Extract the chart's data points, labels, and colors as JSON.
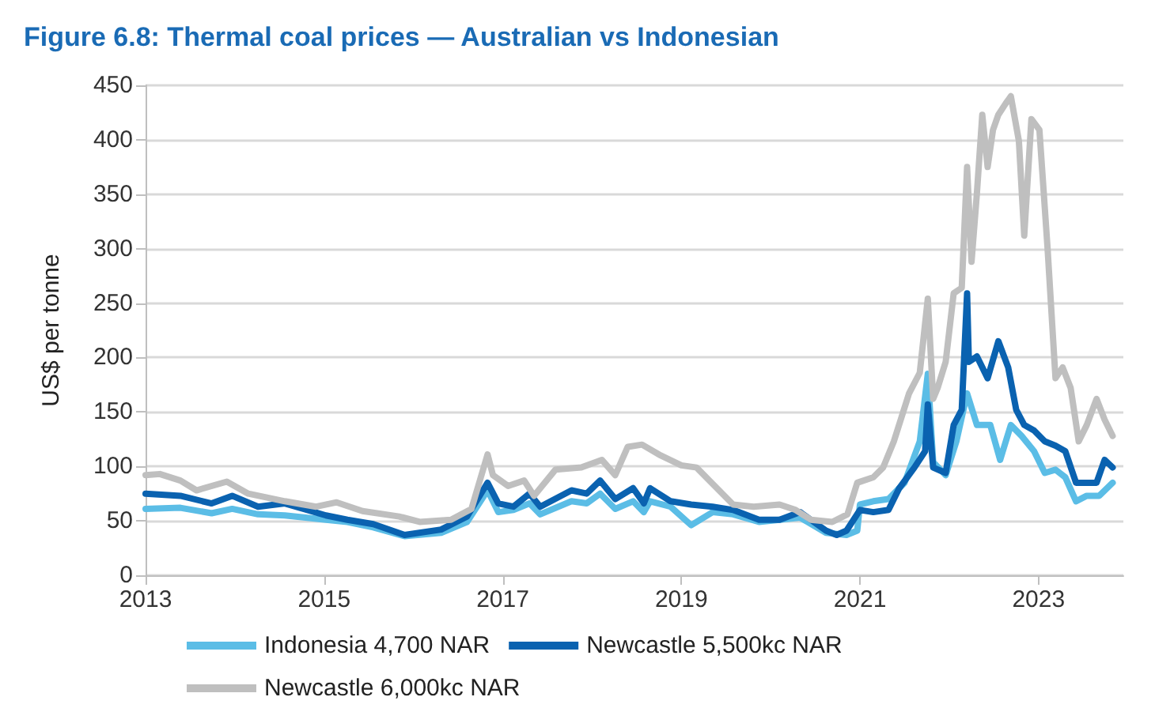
{
  "chart_data": {
    "type": "line",
    "title": "Figure 6.8: Thermal coal prices — Australian vs Indonesian",
    "ylabel": "US$ per tonne",
    "xlim": [
      2013,
      2023.95
    ],
    "xticks": [
      2013,
      2015,
      2017,
      2019,
      2021,
      2023
    ],
    "ylim": [
      0,
      450
    ],
    "yticks": [
      0,
      50,
      100,
      150,
      200,
      250,
      300,
      350,
      400,
      450
    ],
    "grid": "y",
    "legend": "bottom",
    "marker": "none",
    "line_style": "solid",
    "series": [
      {
        "name": "Indonesia 4,700 NAR",
        "color": "#5bbde6",
        "x": [
          2013.0,
          2013.39,
          2013.74,
          2013.97,
          2014.26,
          2014.56,
          2015.02,
          2015.26,
          2015.55,
          2015.9,
          2016.31,
          2016.6,
          2016.83,
          2016.95,
          2017.12,
          2017.3,
          2017.42,
          2017.77,
          2017.94,
          2018.09,
          2018.26,
          2018.46,
          2018.58,
          2018.65,
          2018.88,
          2019.11,
          2019.35,
          2019.58,
          2019.87,
          2020.1,
          2020.33,
          2020.62,
          2020.85,
          2020.97,
          2021.0,
          2021.15,
          2021.32,
          2021.5,
          2021.67,
          2021.76,
          2021.82,
          2021.96,
          2022.08,
          2022.2,
          2022.31,
          2022.46,
          2022.57,
          2022.69,
          2022.81,
          2022.95,
          2023.07,
          2023.19,
          2023.3,
          2023.42,
          2023.54,
          2023.68,
          2023.83
        ],
        "values": [
          61,
          62,
          57,
          61,
          56,
          55,
          51,
          49,
          44,
          36,
          39,
          49,
          78,
          58,
          60,
          66,
          56,
          68,
          66,
          75,
          61,
          68,
          58,
          68,
          63,
          46,
          58,
          56,
          49,
          51,
          53,
          39,
          37,
          41,
          65,
          68,
          70,
          85,
          123,
          185,
          104,
          92,
          123,
          167,
          138,
          138,
          106,
          138,
          128,
          114,
          94,
          97,
          90,
          68,
          73,
          73,
          85
        ]
      },
      {
        "name": "Newcastle 5,500kc NAR",
        "color": "#0a62b0",
        "x": [
          2013.0,
          2013.39,
          2013.74,
          2013.97,
          2014.26,
          2014.56,
          2015.02,
          2015.26,
          2015.55,
          2015.9,
          2016.31,
          2016.6,
          2016.83,
          2016.95,
          2017.12,
          2017.3,
          2017.42,
          2017.77,
          2017.94,
          2018.09,
          2018.26,
          2018.46,
          2018.58,
          2018.65,
          2018.88,
          2019.11,
          2019.35,
          2019.58,
          2019.87,
          2020.1,
          2020.33,
          2020.62,
          2020.74,
          2020.85,
          2021.0,
          2021.15,
          2021.32,
          2021.44,
          2021.61,
          2021.73,
          2021.76,
          2021.82,
          2021.96,
          2022.05,
          2022.14,
          2022.2,
          2022.22,
          2022.31,
          2022.43,
          2022.55,
          2022.66,
          2022.75,
          2022.84,
          2022.95,
          2023.07,
          2023.19,
          2023.3,
          2023.42,
          2023.54,
          2023.65,
          2023.74,
          2023.83
        ],
        "values": [
          75,
          73,
          66,
          73,
          63,
          66,
          55,
          51,
          47,
          37,
          42,
          54,
          85,
          66,
          63,
          75,
          63,
          78,
          75,
          87,
          70,
          80,
          66,
          80,
          68,
          65,
          63,
          60,
          51,
          51,
          58,
          41,
          37,
          41,
          60,
          58,
          60,
          80,
          99,
          114,
          157,
          99,
          94,
          138,
          152,
          259,
          196,
          201,
          181,
          215,
          191,
          152,
          138,
          133,
          123,
          119,
          114,
          85,
          85,
          85,
          106,
          99
        ]
      },
      {
        "name": "Newcastle 6,000kc NAR",
        "color": "#bfbfbf",
        "x": [
          2013.0,
          2013.16,
          2013.39,
          2013.57,
          2013.91,
          2014.15,
          2014.56,
          2014.91,
          2015.14,
          2015.43,
          2015.84,
          2016.07,
          2016.42,
          2016.65,
          2016.83,
          2016.89,
          2017.06,
          2017.24,
          2017.35,
          2017.59,
          2017.88,
          2018.11,
          2018.26,
          2018.4,
          2018.56,
          2018.77,
          2019.0,
          2019.17,
          2019.35,
          2019.58,
          2019.81,
          2020.1,
          2020.28,
          2020.45,
          2020.69,
          2020.86,
          2020.97,
          2021.15,
          2021.26,
          2021.38,
          2021.55,
          2021.67,
          2021.76,
          2021.82,
          2021.87,
          2021.96,
          2022.05,
          2022.14,
          2022.2,
          2022.25,
          2022.31,
          2022.37,
          2022.43,
          2022.49,
          2022.55,
          2022.63,
          2022.69,
          2022.78,
          2022.84,
          2022.92,
          2023.01,
          2023.1,
          2023.19,
          2023.27,
          2023.36,
          2023.45,
          2023.54,
          2023.65,
          2023.74,
          2023.83
        ],
        "values": [
          92,
          93,
          87,
          78,
          86,
          75,
          68,
          63,
          67,
          59,
          54,
          49,
          51,
          61,
          111,
          92,
          82,
          87,
          73,
          97,
          99,
          106,
          92,
          118,
          120,
          110,
          101,
          99,
          84,
          65,
          63,
          65,
          60,
          51,
          49,
          56,
          85,
          90,
          99,
          123,
          167,
          186,
          254,
          162,
          172,
          196,
          259,
          264,
          375,
          288,
          351,
          423,
          375,
          409,
          423,
          433,
          440,
          399,
          312,
          419,
          409,
          302,
          181,
          191,
          172,
          123,
          138,
          162,
          143,
          128
        ]
      }
    ]
  }
}
